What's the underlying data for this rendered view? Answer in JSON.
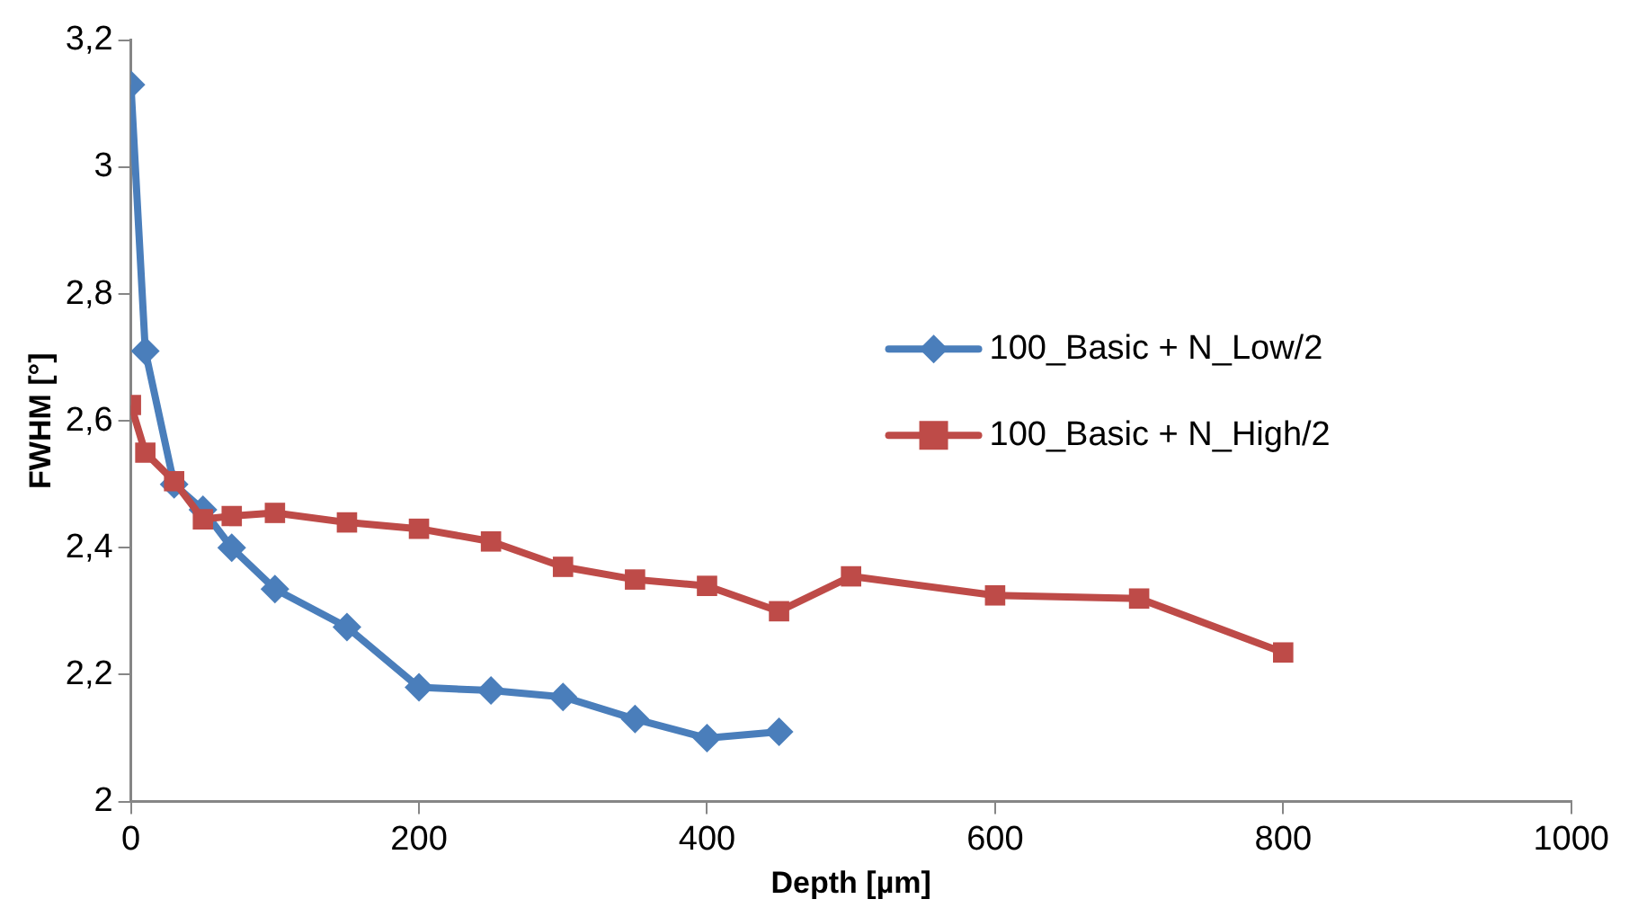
{
  "chart_data": {
    "type": "line",
    "xlabel": "Depth [µm]",
    "ylabel": "FWHM [°]",
    "xlim": [
      0,
      1000
    ],
    "xticks": [
      0,
      200,
      400,
      600,
      800,
      1000
    ],
    "ylim": [
      2,
      3.2
    ],
    "yticks": [
      2,
      {
        "value": 2.2,
        "label": "2,2"
      },
      {
        "value": 2.4,
        "label": "2,4"
      },
      {
        "value": 2.6,
        "label": "2,6"
      },
      {
        "value": 2.8,
        "label": "2,8"
      },
      3,
      {
        "value": 3.2,
        "label": "3,2"
      }
    ],
    "grid": false,
    "legend": "right",
    "line_style": "solid",
    "series": [
      {
        "name": "100_Basic + N_Low/2",
        "color": "#4a7ebb",
        "marker": "diamond",
        "x": [
          0,
          10,
          30,
          50,
          70,
          100,
          150,
          200,
          250,
          300,
          350,
          400,
          450
        ],
        "values": [
          3.13,
          2.71,
          2.5,
          2.46,
          2.4,
          2.335,
          2.275,
          2.18,
          2.175,
          2.165,
          2.13,
          2.1,
          2.11
        ]
      },
      {
        "name": "100_Basic + N_High/2",
        "color": "#be4b48",
        "marker": "square",
        "x": [
          0,
          10,
          30,
          50,
          70,
          100,
          150,
          200,
          250,
          300,
          350,
          400,
          450,
          500,
          600,
          700,
          800
        ],
        "values": [
          2.625,
          2.55,
          2.505,
          2.445,
          2.45,
          2.455,
          2.44,
          2.43,
          2.41,
          2.37,
          2.35,
          2.34,
          2.3,
          2.355,
          2.325,
          2.32,
          2.235
        ]
      }
    ]
  }
}
